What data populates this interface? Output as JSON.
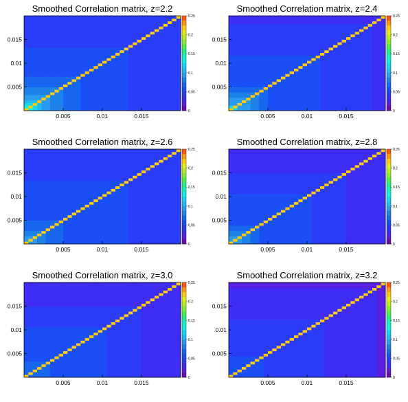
{
  "figure": {
    "panels": [
      {
        "title": "Smoothed Correlation matrix, z=2.2"
      },
      {
        "title": "Smoothed Correlation matrix, z=2.4"
      },
      {
        "title": "Smoothed Correlation matrix, z=2.6"
      },
      {
        "title": "Smoothed Correlation matrix, z=2.8"
      },
      {
        "title": "Smoothed Correlation matrix, z=3.0"
      },
      {
        "title": "Smoothed Correlation matrix, z=3.2"
      }
    ]
  },
  "chart_data": [
    {
      "type": "heatmap",
      "title": "Smoothed Correlation matrix, z=2.2",
      "z_value": 2.2,
      "x_ticks": [
        "0.005",
        "0.01",
        "0.015"
      ],
      "y_ticks": [
        "0.005",
        "0.01",
        "0.015"
      ],
      "z_ticks": [
        "0",
        "0.05",
        "0.1",
        "0.15",
        "0.2",
        "0.25"
      ],
      "x_range": [
        0,
        0.02
      ],
      "y_range": [
        0,
        0.02
      ],
      "z_range": [
        0,
        0.25
      ],
      "diagonal_value": 0.22,
      "corr_profile": [
        0.15,
        0.12,
        0.1,
        0.09,
        0.08,
        0.07,
        0.07,
        0.06,
        0.06,
        0.06,
        0.06,
        0.05,
        0.05,
        0.05,
        0.04,
        0.04,
        0.04,
        0.04,
        0.04,
        0.04
      ]
    },
    {
      "type": "heatmap",
      "title": "Smoothed Correlation matrix, z=2.4",
      "z_value": 2.4,
      "x_ticks": [
        "0.005",
        "0.01",
        "0.015"
      ],
      "y_ticks": [
        "0.005",
        "0.01",
        "0.015"
      ],
      "z_ticks": [
        "0",
        "0.05",
        "0.1",
        "0.15",
        "0.2",
        "0.25"
      ],
      "x_range": [
        0,
        0.02
      ],
      "y_range": [
        0,
        0.02
      ],
      "z_range": [
        0,
        0.25
      ],
      "diagonal_value": 0.22,
      "corr_profile": [
        0.13,
        0.1,
        0.09,
        0.08,
        0.07,
        0.06,
        0.06,
        0.06,
        0.05,
        0.05,
        0.05,
        0.05,
        0.04,
        0.04,
        0.04,
        0.04,
        0.04,
        0.04,
        0.035,
        0.035
      ]
    },
    {
      "type": "heatmap",
      "title": "Smoothed Correlation matrix, z=2.6",
      "z_value": 2.6,
      "x_ticks": [
        "0.005",
        "0.01",
        "0.015"
      ],
      "y_ticks": [
        "0.005",
        "0.01",
        "0.015"
      ],
      "z_ticks": [
        "0",
        "0.05",
        "0.1",
        "0.15",
        "0.2",
        "0.25"
      ],
      "x_range": [
        0,
        0.02
      ],
      "y_range": [
        0,
        0.02
      ],
      "z_range": [
        0,
        0.25
      ],
      "diagonal_value": 0.22,
      "corr_profile": [
        0.11,
        0.09,
        0.08,
        0.07,
        0.07,
        0.06,
        0.06,
        0.06,
        0.05,
        0.05,
        0.05,
        0.05,
        0.05,
        0.05,
        0.04,
        0.04,
        0.04,
        0.04,
        0.04,
        0.04
      ]
    },
    {
      "type": "heatmap",
      "title": "Smoothed Correlation matrix, z=2.8",
      "z_value": 2.8,
      "x_ticks": [
        "0.005",
        "0.01",
        "0.015"
      ],
      "y_ticks": [
        "0.005",
        "0.01",
        "0.015"
      ],
      "z_ticks": [
        "0",
        "0.05",
        "0.1",
        "0.15",
        "0.2",
        "0.25"
      ],
      "x_range": [
        0,
        0.02
      ],
      "y_range": [
        0,
        0.02
      ],
      "z_range": [
        0,
        0.25
      ],
      "diagonal_value": 0.22,
      "corr_profile": [
        0.11,
        0.09,
        0.08,
        0.07,
        0.06,
        0.06,
        0.05,
        0.05,
        0.05,
        0.05,
        0.05,
        0.04,
        0.04,
        0.04,
        0.04,
        0.035,
        0.035,
        0.035,
        0.03,
        0.03
      ]
    },
    {
      "type": "heatmap",
      "title": "Smoothed Correlation matrix, z=3.0",
      "z_value": 3.0,
      "x_ticks": [
        "0.005",
        "0.01",
        "0.015"
      ],
      "y_ticks": [
        "0.005",
        "0.01",
        "0.015"
      ],
      "z_ticks": [
        "0",
        "0.05",
        "0.1",
        "0.15",
        "0.2",
        "0.25"
      ],
      "x_range": [
        0,
        0.02
      ],
      "y_range": [
        0,
        0.02
      ],
      "z_range": [
        0,
        0.25
      ],
      "diagonal_value": 0.22,
      "corr_profile": [
        0.08,
        0.07,
        0.07,
        0.06,
        0.06,
        0.06,
        0.05,
        0.05,
        0.05,
        0.05,
        0.05,
        0.04,
        0.04,
        0.04,
        0.04,
        0.035,
        0.035,
        0.035,
        0.03,
        0.03
      ]
    },
    {
      "type": "heatmap",
      "title": "Smoothed Correlation matrix, z=3.2",
      "z_value": 3.2,
      "x_ticks": [
        "0.005",
        "0.01",
        "0.015"
      ],
      "y_ticks": [
        "0.005",
        "0.01",
        "0.015"
      ],
      "z_ticks": [
        "0",
        "0.05",
        "0.1",
        "0.15",
        "0.2",
        "0.25"
      ],
      "x_range": [
        0,
        0.02
      ],
      "y_range": [
        0,
        0.02
      ],
      "z_range": [
        0,
        0.25
      ],
      "diagonal_value": 0.22,
      "corr_profile": [
        0.05,
        0.05,
        0.05,
        0.05,
        0.05,
        0.045,
        0.045,
        0.045,
        0.04,
        0.04,
        0.04,
        0.04,
        0.035,
        0.035,
        0.035,
        0.03,
        0.03,
        0.03,
        0.025,
        0.02
      ]
    }
  ]
}
